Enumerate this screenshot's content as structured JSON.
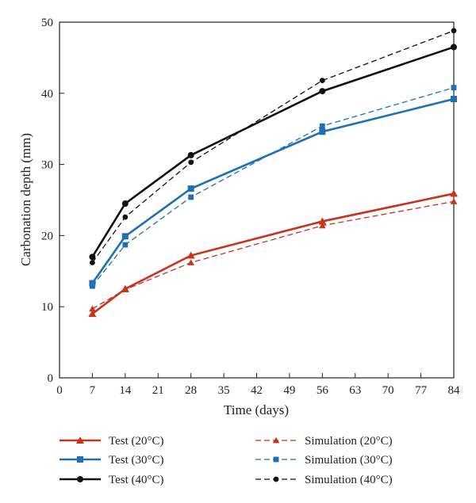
{
  "chart_data": {
    "type": "line",
    "title": "",
    "xlabel": "Time (days)",
    "ylabel": "Carbonation depth (mm)",
    "xlim": [
      0,
      84
    ],
    "ylim": [
      0,
      50
    ],
    "xticks": [
      0,
      7,
      14,
      21,
      28,
      35,
      42,
      49,
      56,
      63,
      70,
      77,
      84
    ],
    "yticks": [
      0,
      10,
      20,
      30,
      40,
      50
    ],
    "grid": false,
    "legend_position": "bottom",
    "series": [
      {
        "name": "Test (20°C)",
        "color": "#c8321e",
        "style": "solid",
        "marker": "triangle",
        "x": [
          7,
          14,
          28,
          56,
          84
        ],
        "values": [
          9.0,
          12.5,
          17.2,
          22.0,
          25.9
        ]
      },
      {
        "name": "Test (30°C)",
        "color": "#1f6fb4",
        "style": "solid",
        "marker": "square",
        "x": [
          7,
          14,
          28,
          56,
          84
        ],
        "values": [
          13.3,
          19.9,
          26.6,
          34.6,
          39.2
        ]
      },
      {
        "name": "Test (40°C)",
        "color": "#111111",
        "style": "solid",
        "marker": "circle",
        "x": [
          7,
          14,
          28,
          56,
          84
        ],
        "values": [
          17.0,
          24.5,
          31.3,
          40.3,
          46.5
        ]
      },
      {
        "name": "Simulation (20°C)",
        "color": "#c8321e",
        "style": "dashed",
        "marker": "triangle",
        "x": [
          7,
          14,
          28,
          56,
          84
        ],
        "values": [
          9.7,
          12.4,
          16.2,
          21.4,
          24.8
        ]
      },
      {
        "name": "Simulation (30°C)",
        "color": "#1f6fb4",
        "style": "dashed",
        "marker": "square",
        "x": [
          7,
          14,
          28,
          56,
          84
        ],
        "values": [
          12.9,
          18.7,
          25.4,
          35.4,
          40.8
        ]
      },
      {
        "name": "Simulation (40°C)",
        "color": "#111111",
        "style": "dashed",
        "marker": "circle",
        "x": [
          7,
          14,
          28,
          56,
          84
        ],
        "values": [
          16.2,
          22.6,
          30.3,
          41.8,
          48.8
        ]
      }
    ]
  }
}
